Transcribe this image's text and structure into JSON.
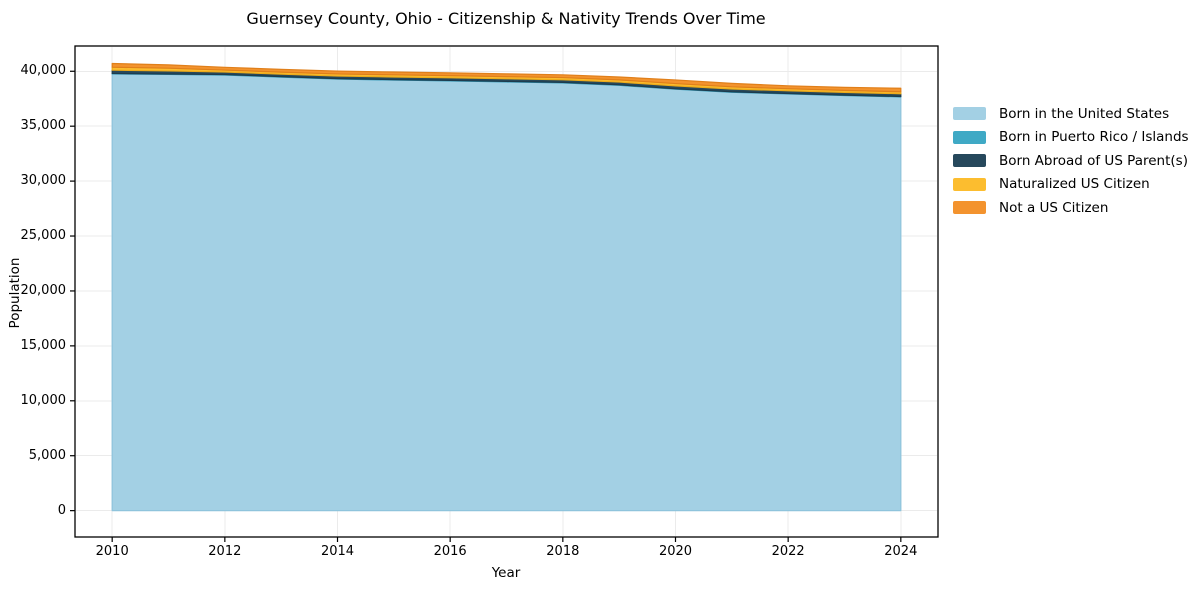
{
  "chart_data": {
    "type": "area",
    "stacked": true,
    "title": "Guernsey County, Ohio - Citizenship & Nativity Trends Over Time",
    "xlabel": "Year",
    "ylabel": "Population",
    "x": [
      2010,
      2011,
      2012,
      2013,
      2014,
      2015,
      2016,
      2017,
      2018,
      2019,
      2020,
      2021,
      2022,
      2023,
      2024
    ],
    "series": [
      {
        "name": "Born in the United States",
        "color": "#a3d0e4",
        "edge_color": "#8fc4dc",
        "values": [
          39760,
          39710,
          39660,
          39470,
          39290,
          39200,
          39120,
          39030,
          38940,
          38720,
          38370,
          38090,
          37940,
          37790,
          37670
        ]
      },
      {
        "name": "Born in Puerto Rico / Islands",
        "color": "#3fa9c5",
        "edge_color": "#2f97b5",
        "values": [
          40,
          40,
          40,
          40,
          40,
          40,
          45,
          45,
          45,
          45,
          40,
          40,
          35,
          35,
          35
        ]
      },
      {
        "name": "Born Abroad of US Parent(s)",
        "color": "#26485c",
        "edge_color": "#1d3b4d",
        "values": [
          300,
          280,
          230,
          230,
          235,
          240,
          240,
          240,
          245,
          250,
          260,
          255,
          250,
          250,
          250
        ]
      },
      {
        "name": "Naturalized US Citizen",
        "color": "#fcbd2f",
        "edge_color": "#edaa1a",
        "values": [
          270,
          250,
          180,
          185,
          190,
          195,
          200,
          200,
          195,
          200,
          210,
          200,
          190,
          185,
          180
        ]
      },
      {
        "name": "Not a US Citizen",
        "color": "#f3932e",
        "edge_color": "#e07f1a",
        "values": [
          340,
          300,
          250,
          250,
          255,
          255,
          250,
          250,
          250,
          260,
          330,
          310,
          260,
          270,
          320
        ]
      }
    ],
    "xticks": [
      2010,
      2012,
      2014,
      2016,
      2018,
      2020,
      2022,
      2024
    ],
    "xtick_labels": [
      "2010",
      "2012",
      "2014",
      "2016",
      "2018",
      "2020",
      "2022",
      "2024"
    ],
    "yticks": [
      0,
      5000,
      10000,
      15000,
      20000,
      25000,
      30000,
      35000,
      40000
    ],
    "ytick_labels": [
      "0",
      "5,000",
      "10,000",
      "15,000",
      "20,000",
      "25,000",
      "30,000",
      "35,000",
      "40,000"
    ],
    "xlim": [
      2009.34,
      2024.66
    ],
    "ylim": [
      -2400,
      42300
    ],
    "grid": true,
    "grid_color": "#ebebeb",
    "frame_color": "#000000",
    "legend_position": "right"
  }
}
